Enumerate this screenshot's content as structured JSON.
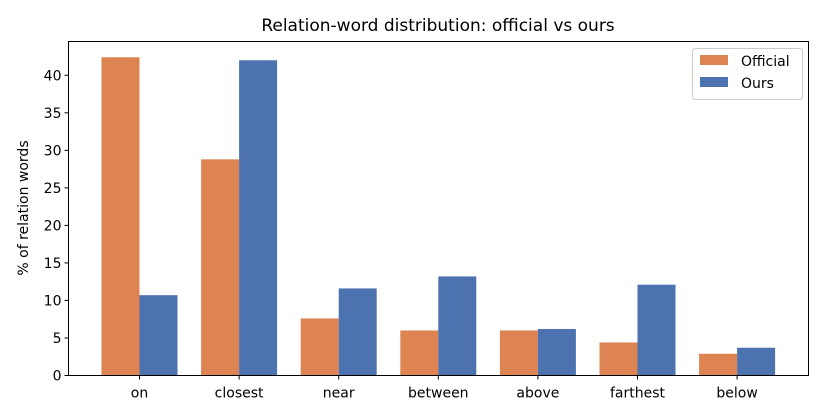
{
  "chart_data": {
    "type": "bar",
    "title": "Relation-word distribution: official vs ours",
    "xlabel": "",
    "ylabel": "% of relation words",
    "categories": [
      "on",
      "closest",
      "near",
      "between",
      "above",
      "farthest",
      "below"
    ],
    "series": [
      {
        "name": "Official",
        "color": "#dd8452",
        "values": [
          42.4,
          28.8,
          7.6,
          6.0,
          6.0,
          4.4,
          2.9
        ]
      },
      {
        "name": "Ours",
        "color": "#4c72b0",
        "values": [
          10.7,
          42.0,
          11.6,
          13.2,
          6.2,
          12.1,
          3.7
        ]
      }
    ],
    "ylim": [
      0,
      44.5
    ],
    "yticks": [
      0,
      5,
      10,
      15,
      20,
      25,
      30,
      35,
      40
    ],
    "legend_position": "top-right",
    "grid": false
  }
}
